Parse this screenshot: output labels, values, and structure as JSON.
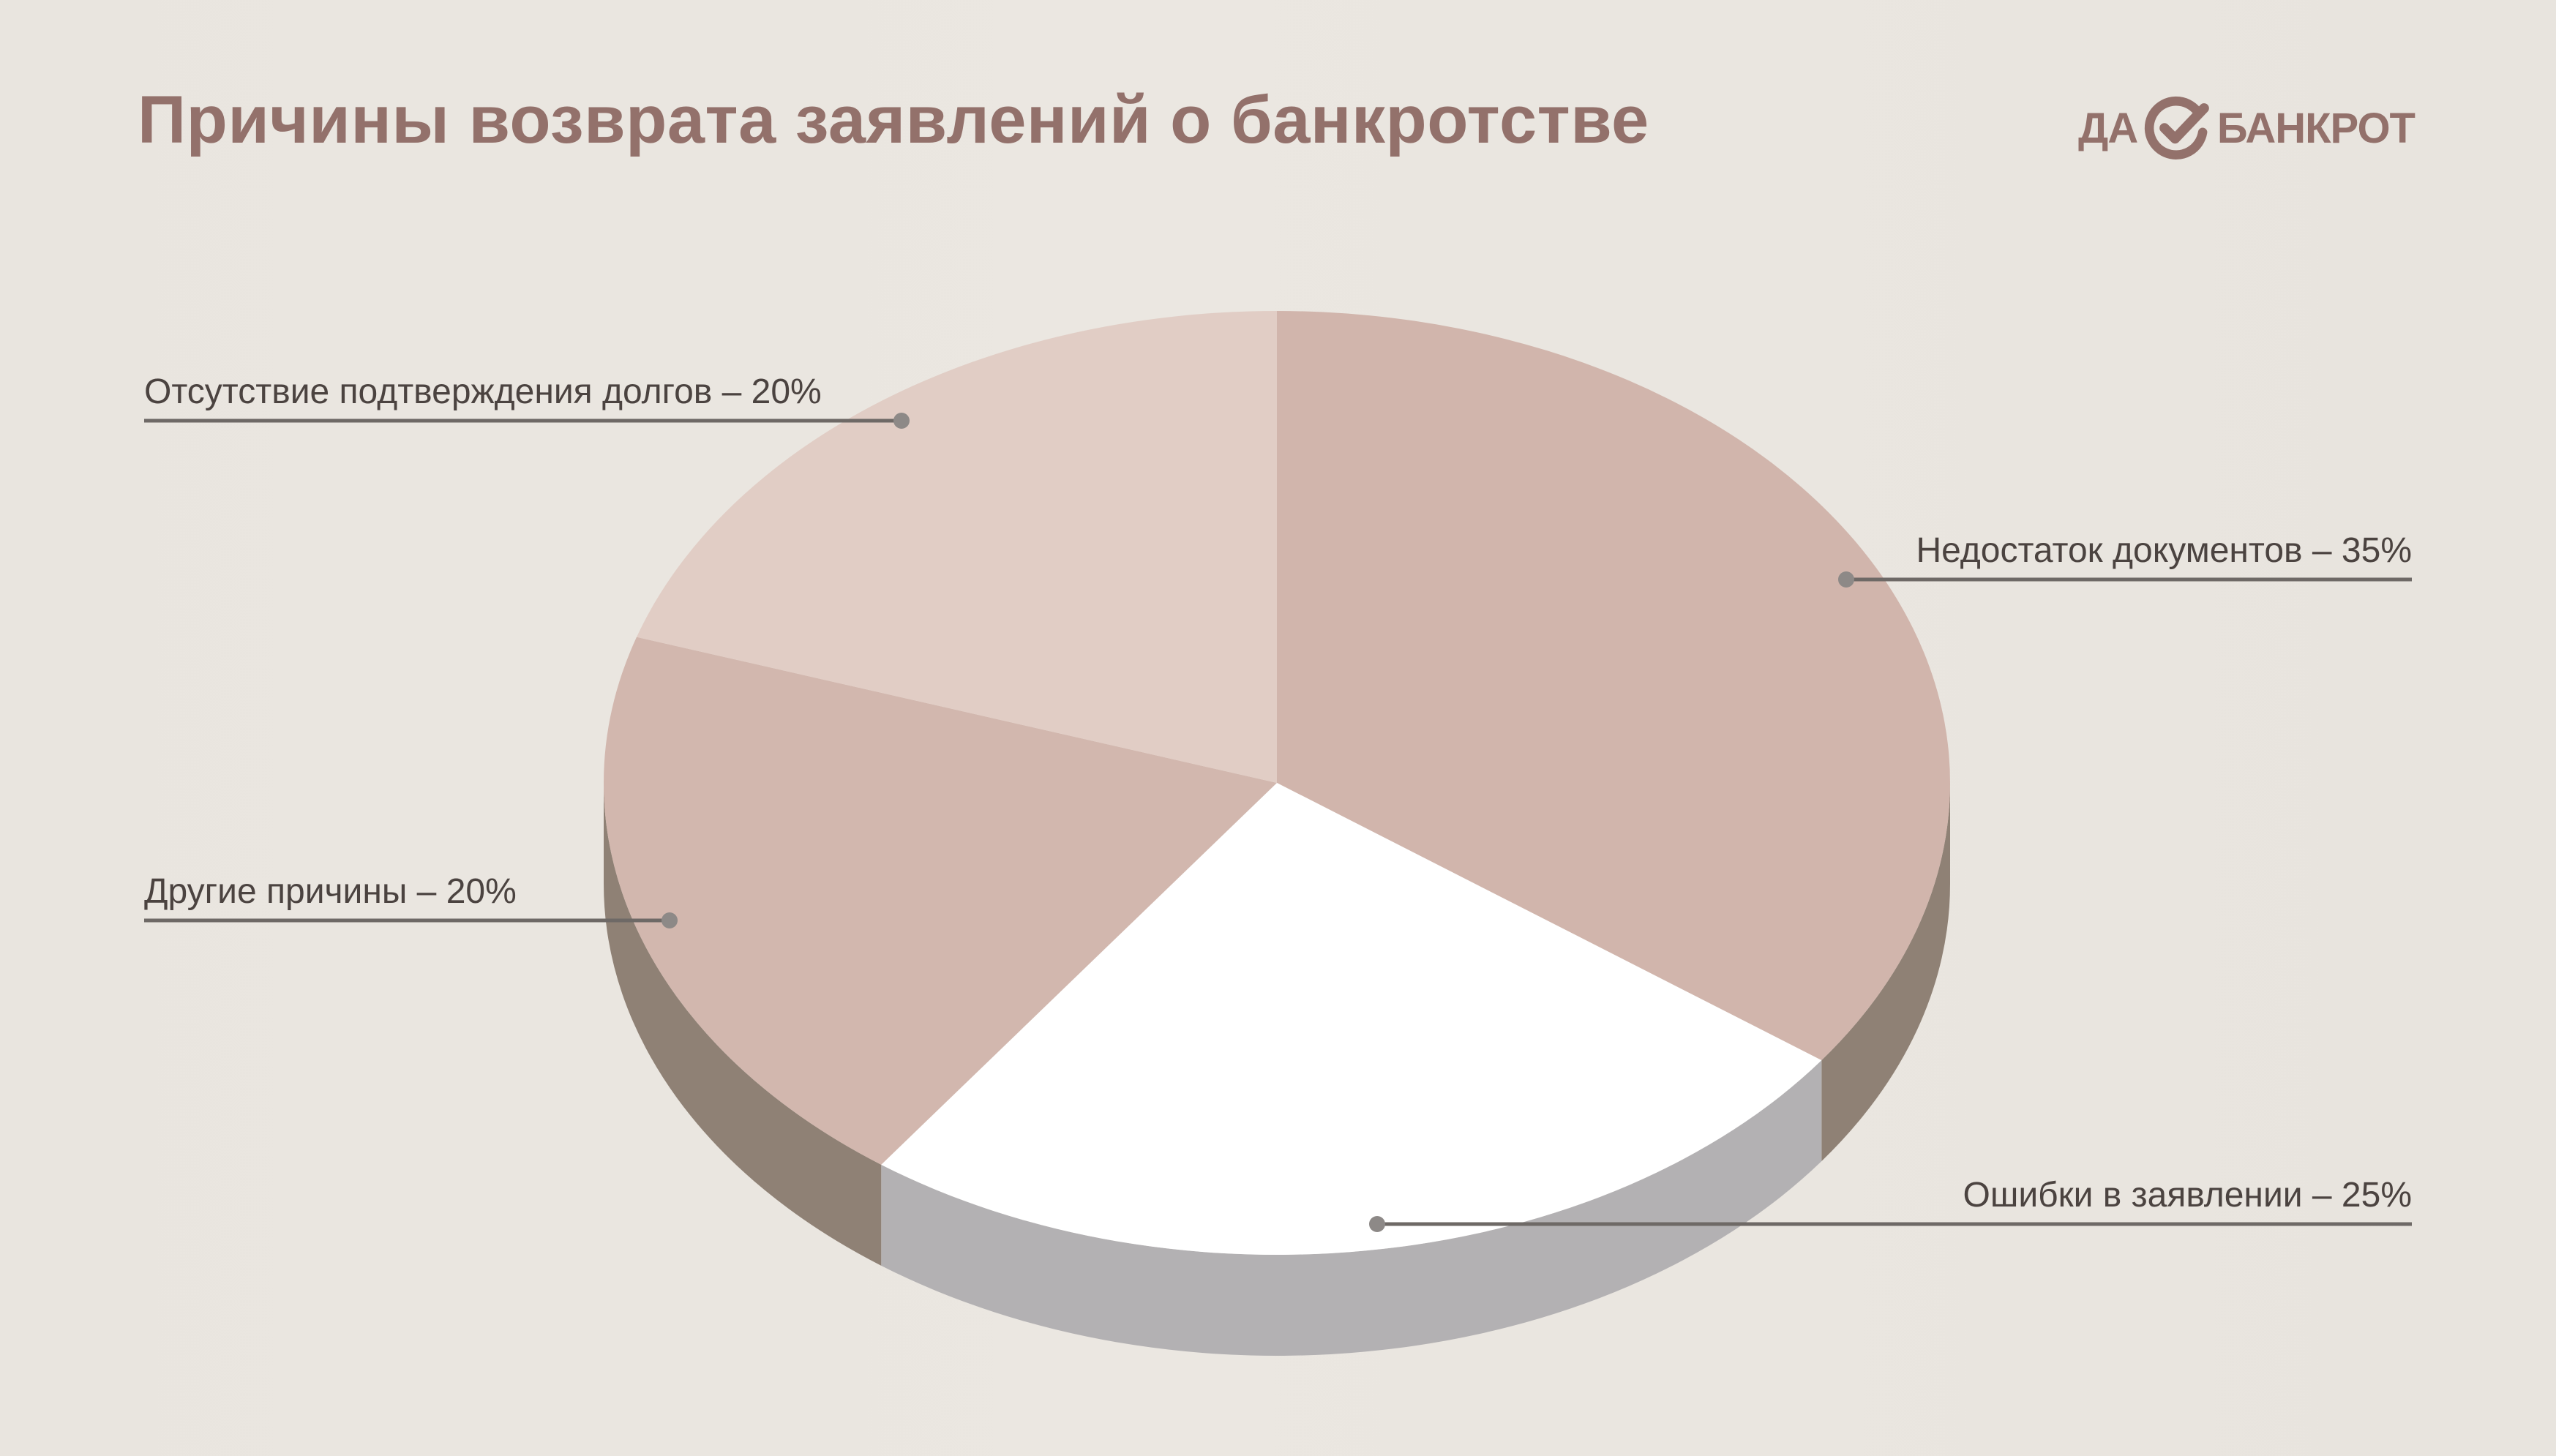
{
  "title": "Причины возврата заявлений о банкротстве",
  "logo": {
    "left_word": "ДА",
    "right_word": "БАНКРОТ",
    "mark_icon": "checkmark-circle-icon",
    "color": "#93716b"
  },
  "chart_data": {
    "type": "pie",
    "style": "3d",
    "title": "Причины возврата заявлений о банкротстве",
    "slices": [
      {
        "label": "Недостаток документов – 35%",
        "name": "Недостаток документов",
        "value": 35,
        "color": "#d1b5ac",
        "side_color": "#8f8175"
      },
      {
        "label": "Ошибки в заявлении – 25%",
        "name": "Ошибки в заявлении",
        "value": 25,
        "color": "#ffffff",
        "side_color": "#b3b1b3"
      },
      {
        "label": "Другие причины – 20%",
        "name": "Другие причины",
        "value": 20,
        "color": "#d2b7ae",
        "side_color": "#8f8175"
      },
      {
        "label": "Отсутствие подтверждения долгов – 20%",
        "name": "Отсутствие подтверждения долгов",
        "value": 20,
        "color": "#e1cdc5",
        "side_color": "#8f8175"
      }
    ],
    "legend": "none",
    "label_line_color": "#6e6966"
  }
}
